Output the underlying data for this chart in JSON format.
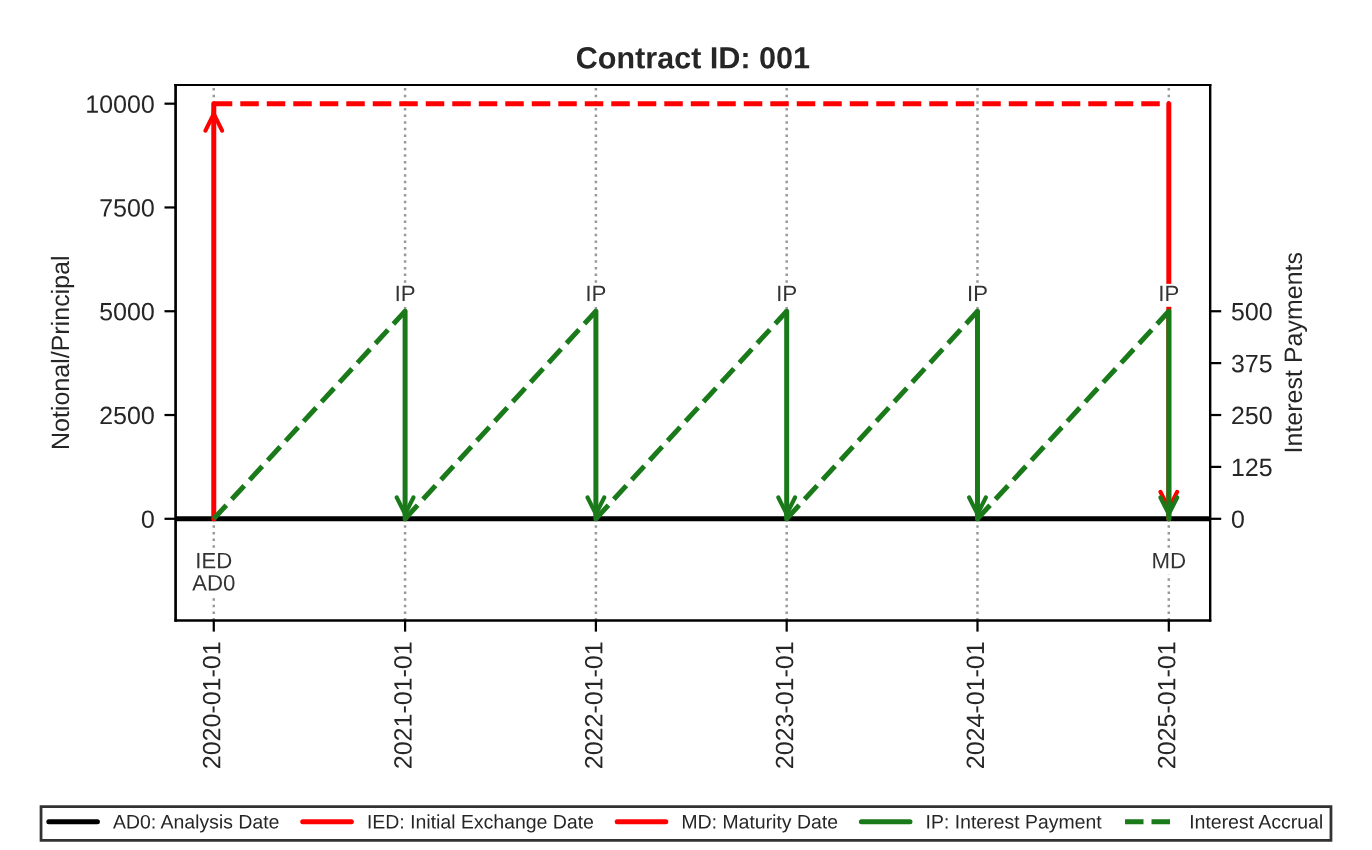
{
  "chart_data": {
    "type": "line",
    "title": "Contract ID: 001",
    "ylabel": "Notional/Principal",
    "y2label": "Interest Payments",
    "xlim": [
      "2019-10-20",
      "2025-03-21"
    ],
    "xticks": [
      "2020-01-01",
      "2021-01-01",
      "2022-01-01",
      "2023-01-01",
      "2024-01-01",
      "2025-01-01"
    ],
    "ylim": [
      -2450,
      10450
    ],
    "yticks": [
      0,
      2500,
      5000,
      7500,
      10000
    ],
    "y2lim": [
      -245,
      1045
    ],
    "y2ticks": [
      0,
      125,
      250,
      375,
      500
    ],
    "grid": "x",
    "legend": "bottom",
    "marker": "none",
    "series": [
      {
        "name": "AD0: Analysis Date",
        "color": "#000000",
        "x": [
          "2019-10-20",
          "2025-03-21"
        ],
        "values": [
          0,
          0
        ],
        "line_style": "solid"
      },
      {
        "name": "IED: Initial Exchange Date",
        "color": "#ff0000",
        "x": [
          "2020-01-01",
          "2020-01-01"
        ],
        "values": [
          0,
          10000
        ],
        "line_style": "solid"
      },
      {
        "color": "#ff0000",
        "x": [
          "2020-01-01",
          "2025-01-01"
        ],
        "values": [
          10000,
          10000
        ],
        "line_style": "dashed"
      },
      {
        "name": "MD: Maturity Date",
        "color": "#ff0000",
        "x": [
          "2025-01-01",
          "2025-01-01"
        ],
        "values": [
          10000,
          0
        ],
        "line_style": "solid"
      },
      {
        "name": "IP: Interest Payment",
        "color": "#1a7a1a",
        "axis": "y2",
        "line_style": "solid",
        "x": [
          "2021-01-01",
          "2021-01-01"
        ],
        "values": [
          500,
          0
        ]
      },
      {
        "color": "#1a7a1a",
        "axis": "y2",
        "line_style": "solid",
        "x": [
          "2022-01-01",
          "2022-01-01"
        ],
        "values": [
          500,
          0
        ]
      },
      {
        "color": "#1a7a1a",
        "axis": "y2",
        "line_style": "solid",
        "x": [
          "2023-01-01",
          "2023-01-01"
        ],
        "values": [
          500,
          0
        ]
      },
      {
        "color": "#1a7a1a",
        "axis": "y2",
        "line_style": "solid",
        "x": [
          "2024-01-01",
          "2024-01-01"
        ],
        "values": [
          500,
          0
        ]
      },
      {
        "color": "#1a7a1a",
        "axis": "y2",
        "line_style": "solid",
        "x": [
          "2025-01-01",
          "2025-01-01"
        ],
        "values": [
          500,
          0
        ]
      },
      {
        "name": "Interest Accrual",
        "color": "#1a7a1a",
        "axis": "y2",
        "line_style": "dashed",
        "x": [
          "2020-01-01",
          "2021-01-01"
        ],
        "values": [
          0,
          500
        ]
      },
      {
        "color": "#1a7a1a",
        "axis": "y2",
        "line_style": "dashed",
        "x": [
          "2021-01-01",
          "2022-01-01"
        ],
        "values": [
          0,
          500
        ]
      },
      {
        "color": "#1a7a1a",
        "axis": "y2",
        "line_style": "dashed",
        "x": [
          "2022-01-01",
          "2023-01-01"
        ],
        "values": [
          0,
          500
        ]
      },
      {
        "color": "#1a7a1a",
        "axis": "y2",
        "line_style": "dashed",
        "x": [
          "2023-01-01",
          "2024-01-01"
        ],
        "values": [
          0,
          500
        ]
      },
      {
        "color": "#1a7a1a",
        "axis": "y2",
        "line_style": "dashed",
        "x": [
          "2024-01-01",
          "2025-01-01"
        ],
        "values": [
          0,
          500
        ]
      }
    ],
    "annotations": [
      {
        "text": "IP",
        "x": "2021-01-01",
        "y": 5000
      },
      {
        "text": "IP",
        "x": "2022-01-01",
        "y": 5000
      },
      {
        "text": "IP",
        "x": "2023-01-01",
        "y": 5000
      },
      {
        "text": "IP",
        "x": "2024-01-01",
        "y": 5000
      },
      {
        "text": "IP",
        "x": "2025-01-01",
        "y": 5000
      },
      {
        "text": "IED",
        "x": "2020-01-01",
        "y": 0
      },
      {
        "text": "AD0",
        "x": "2020-01-01",
        "y": 0
      },
      {
        "text": "MD",
        "x": "2025-01-01",
        "y": 0
      }
    ]
  }
}
